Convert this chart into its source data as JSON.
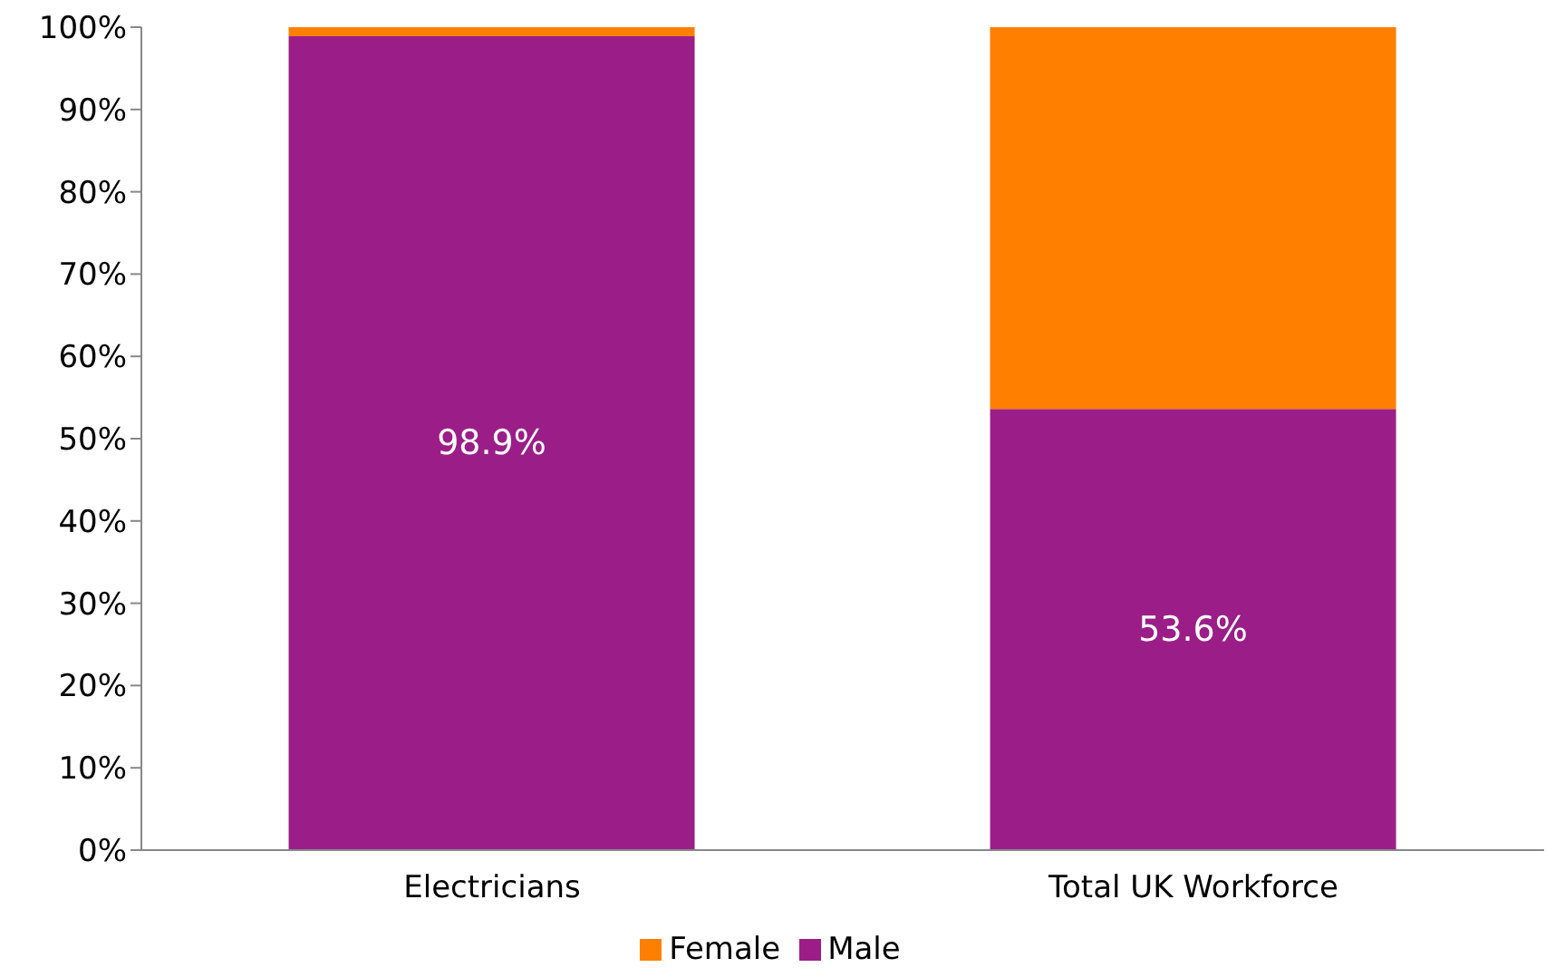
{
  "chart_data": {
    "type": "bar",
    "stacked": true,
    "categories": [
      "Electricians",
      "Total UK Workforce"
    ],
    "series": [
      {
        "name": "Male",
        "color": "#9b1e88",
        "values": [
          98.9,
          53.6
        ],
        "value_labels": [
          "98.9%",
          "53.6%"
        ]
      },
      {
        "name": "Female",
        "color": "#ff7f00",
        "values": [
          1.1,
          46.4
        ]
      }
    ],
    "ylim": [
      0,
      100
    ],
    "yticks": [
      {
        "value": 0,
        "label": "0%"
      },
      {
        "value": 10,
        "label": "10%"
      },
      {
        "value": 20,
        "label": "20%"
      },
      {
        "value": 30,
        "label": "30%"
      },
      {
        "value": 40,
        "label": "40%"
      },
      {
        "value": 50,
        "label": "50%"
      },
      {
        "value": 60,
        "label": "60%"
      },
      {
        "value": 70,
        "label": "70%"
      },
      {
        "value": 80,
        "label": "80%"
      },
      {
        "value": 90,
        "label": "90%"
      },
      {
        "value": 100,
        "label": "100%"
      }
    ],
    "grid": false,
    "legend": "bottom"
  }
}
